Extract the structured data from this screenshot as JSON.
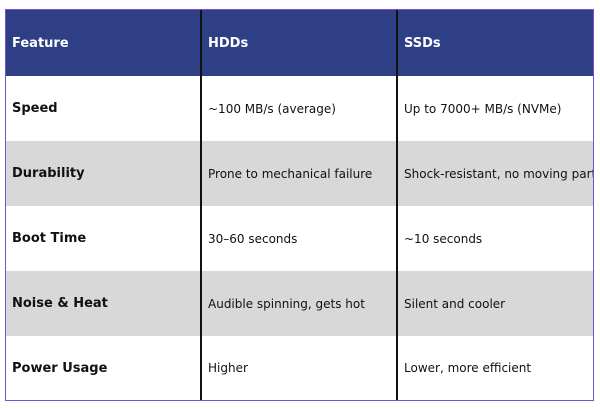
{
  "table": {
    "headers": [
      "Feature",
      "HDDs",
      "SSDs"
    ],
    "rows": [
      [
        "Speed",
        "~100 MB/s (average)",
        "Up to 7000+ MB/s (NVMe)"
      ],
      [
        "Durability",
        "Prone to mechanical failure",
        "Shock-resistant, no moving parts"
      ],
      [
        "Boot Time",
        "30–60 seconds",
        "~10 seconds"
      ],
      [
        "Noise & Heat",
        "Audible spinning, gets hot",
        "Silent and cooler"
      ],
      [
        "Power Usage",
        "Higher",
        "Lower, more efficient"
      ]
    ]
  },
  "colors": {
    "header_background": "#2f3f86",
    "header_text": "#ffffff",
    "shaded_row": "#d8d8d8",
    "border": "#7a4fd0"
  }
}
